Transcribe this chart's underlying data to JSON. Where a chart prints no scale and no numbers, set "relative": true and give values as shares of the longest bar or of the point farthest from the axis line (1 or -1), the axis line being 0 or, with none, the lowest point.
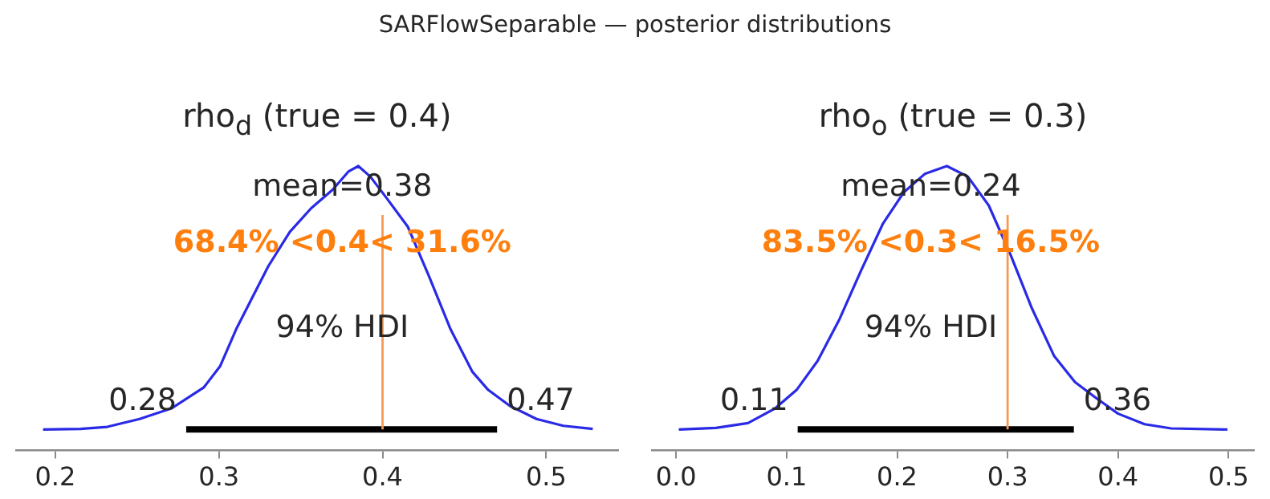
{
  "chart_data": [
    {
      "type": "line",
      "title": "SARFlowSeparable — posterior distributions",
      "subtitle": "rho$_{d}$ (true = 0.4)",
      "relative": true,
      "xlim": [
        0.176,
        0.544
      ],
      "xticks": [
        {
          "value": 0.2,
          "label": "0.2"
        },
        {
          "value": 0.3,
          "label": "0.3"
        },
        {
          "value": 0.4,
          "label": "0.4"
        },
        {
          "value": 0.5,
          "label": "0.5"
        }
      ],
      "grid": false,
      "legend": false,
      "marker": "none",
      "line_style": "solid",
      "series": [
        {
          "color": "#2a2ae6",
          "x": [
            0.1925,
            0.2154,
            0.2318,
            0.2515,
            0.271,
            0.2908,
            0.3007,
            0.3105,
            0.3203,
            0.3302,
            0.3433,
            0.3564,
            0.3695,
            0.3793,
            0.3852,
            0.3925,
            0.4023,
            0.4154,
            0.4285,
            0.4416,
            0.4548,
            0.4646,
            0.4777,
            0.4941,
            0.5105,
            0.5285
          ],
          "values": [
            0,
            0.002,
            0.01,
            0.04,
            0.08,
            0.16,
            0.24,
            0.38,
            0.5,
            0.62,
            0.75,
            0.84,
            0.91,
            0.98,
            1,
            0.96,
            0.88,
            0.77,
            0.58,
            0.38,
            0.22,
            0.15,
            0.09,
            0.04,
            0.014,
            0.002
          ]
        },
        {
          "color": "#000000",
          "x": [
            0.28,
            0.47
          ],
          "values": [
            0,
            0
          ]
        }
      ],
      "ref_lines": [
        {
          "axis": "x",
          "value": 0.4,
          "color": "#f59b56"
        }
      ],
      "annotations": [
        "mean=0.38",
        "68.4% <0.4< 31.6%",
        "94% HDI",
        {
          "text": "0.28",
          "x": 0.28,
          "y": 0
        },
        {
          "text": "0.47",
          "x": 0.47,
          "y": 0
        }
      ]
    },
    {
      "type": "line",
      "subtitle": "rho$_{o}$ (true = 0.3)",
      "relative": true,
      "xlim": [
        -0.022,
        0.523
      ],
      "xticks": [
        {
          "value": 0,
          "label": "0.0"
        },
        {
          "value": 0.1,
          "label": "0.1"
        },
        {
          "value": 0.2,
          "label": "0.2"
        },
        {
          "value": 0.3,
          "label": "0.3"
        },
        {
          "value": 0.4,
          "label": "0.4"
        },
        {
          "value": 0.5,
          "label": "0.5"
        }
      ],
      "grid": false,
      "legend": false,
      "marker": "none",
      "line_style": "solid",
      "series": [
        {
          "color": "#2a2ae6",
          "x": [
            0.0024,
            0.036,
            0.065,
            0.0896,
            0.109,
            0.128,
            0.148,
            0.167,
            0.187,
            0.206,
            0.225,
            0.245,
            0.264,
            0.283,
            0.303,
            0.322,
            0.342,
            0.361,
            0.38,
            0.4,
            0.424,
            0.448,
            0.499
          ],
          "values": [
            0,
            0.006,
            0.024,
            0.08,
            0.15,
            0.26,
            0.42,
            0.6,
            0.78,
            0.9,
            0.97,
            1,
            0.96,
            0.85,
            0.66,
            0.46,
            0.28,
            0.18,
            0.12,
            0.06,
            0.02,
            0.004,
            0
          ]
        },
        {
          "color": "#000000",
          "x": [
            0.11,
            0.36
          ],
          "values": [
            0,
            0
          ]
        }
      ],
      "ref_lines": [
        {
          "axis": "x",
          "value": 0.3,
          "color": "#f59b56"
        }
      ],
      "annotations": [
        "mean=0.24",
        "83.5% <0.3< 16.5%",
        "94% HDI",
        {
          "text": "0.11",
          "x": 0.11,
          "y": 0
        },
        {
          "text": "0.36",
          "x": 0.36,
          "y": 0
        }
      ]
    }
  ]
}
